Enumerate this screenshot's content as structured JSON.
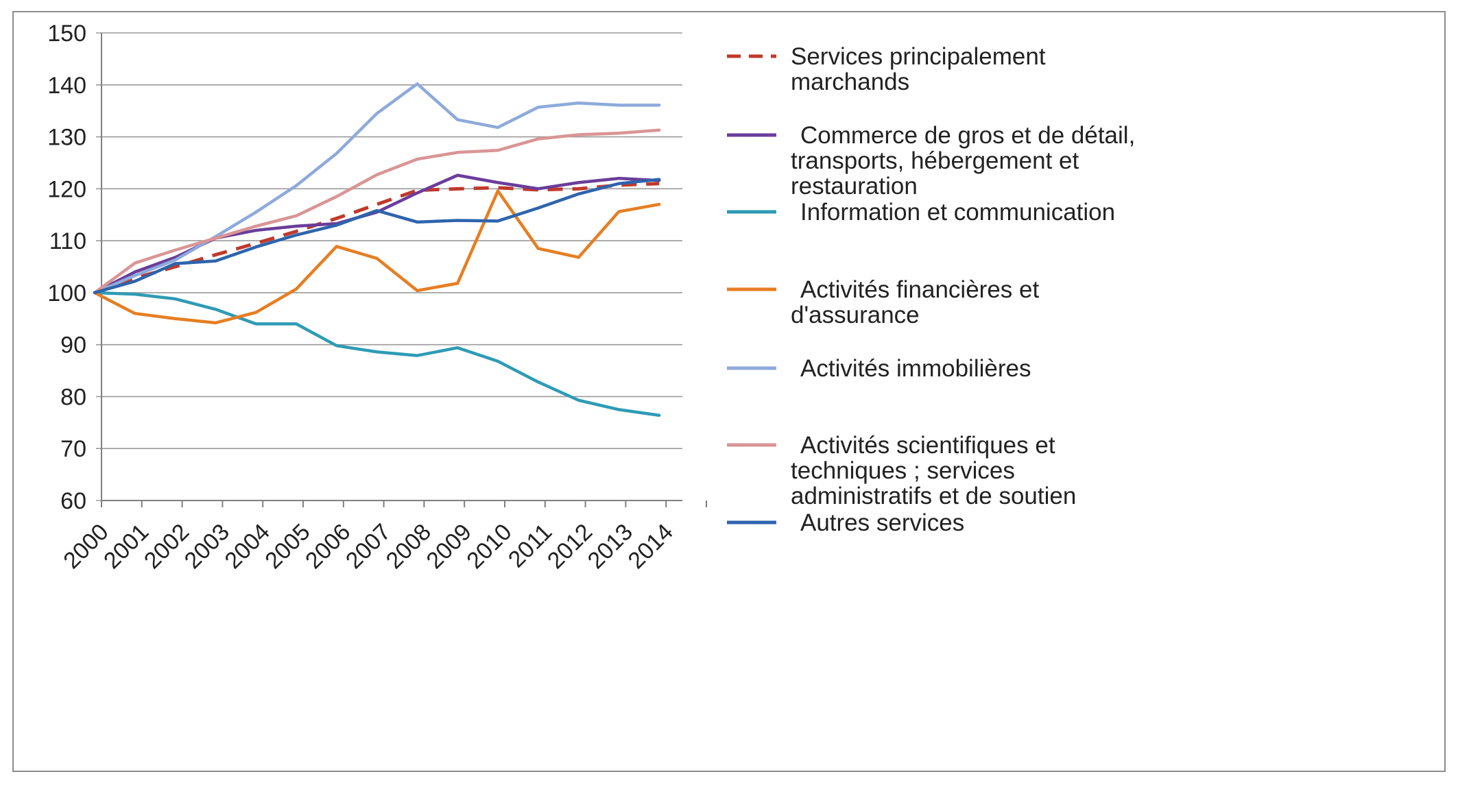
{
  "chart_data": {
    "type": "line",
    "title": "",
    "xlabel": "",
    "ylabel": "",
    "x": [
      "2000",
      "2001",
      "2002",
      "2003",
      "2004",
      "2005",
      "2006",
      "2007",
      "2008",
      "2009",
      "2010",
      "2011",
      "2012",
      "2013",
      "2014"
    ],
    "ylim": [
      60,
      150
    ],
    "yticks": [
      "150",
      "140",
      "130",
      "120",
      "110",
      "100",
      "90",
      "80",
      "70",
      "60"
    ],
    "grid": true,
    "legend_position": "right",
    "series": [
      {
        "name": "Services principalement marchands",
        "legend_lines": [
          "Services principalement",
          "marchands"
        ],
        "color": "#c0392b",
        "dashed": true,
        "values": [
          100,
          102.8,
          105,
          107.3,
          109.5,
          111.8,
          114.3,
          117,
          119.7,
          120,
          120.2,
          119.8,
          120,
          120.7,
          121
        ]
      },
      {
        "name": "Commerce de gros et de détail, transports, hébergement et restauration",
        "legend_lines": [
          "Commerce de gros et de détail,",
          "transports, hébergement et",
          "restauration"
        ],
        "color": "#6a3d9a",
        "dashed": false,
        "values": [
          100,
          104,
          106.8,
          110.5,
          112,
          112.8,
          113.3,
          115.5,
          119.2,
          122.6,
          121.2,
          120,
          121.2,
          122,
          121.6
        ]
      },
      {
        "name": "Information et communication",
        "legend_lines": [
          "Information et communication"
        ],
        "color": "#2e9bb5",
        "dashed": false,
        "values": [
          100,
          99.7,
          98.8,
          96.8,
          94,
          94,
          89.8,
          88.6,
          87.9,
          89.4,
          86.8,
          82.8,
          79.3,
          77.5,
          76.4
        ]
      },
      {
        "name": "Activités financières et d'assurance",
        "legend_lines": [
          "Activités financières et",
          "d'assurance"
        ],
        "color": "#e67e22",
        "dashed": false,
        "values": [
          100,
          96,
          95,
          94.2,
          96.2,
          100.7,
          108.9,
          106.6,
          100.4,
          101.8,
          119.6,
          108.5,
          106.8,
          115.6,
          117
        ]
      },
      {
        "name": "Activités immobilières",
        "legend_lines": [
          "Activités immobilières"
        ],
        "color": "#8eaadb",
        "dashed": false,
        "values": [
          100,
          103.3,
          106.3,
          110.8,
          115.5,
          120.6,
          126.8,
          134.5,
          140.2,
          133.3,
          131.8,
          135.7,
          136.5,
          136.1,
          136.1
        ]
      },
      {
        "name": "Activités scientifiques et techniques ; services administratifs et de soutien",
        "legend_lines": [
          "Activités scientifiques et",
          "techniques ; services",
          "administratifs et de soutien"
        ],
        "color": "#d99594",
        "dashed": false,
        "values": [
          100,
          105.7,
          108.2,
          110.5,
          112.8,
          114.8,
          118.5,
          122.7,
          125.7,
          127,
          127.4,
          129.6,
          130.4,
          130.7,
          131.3
        ]
      },
      {
        "name": "Autres services",
        "legend_lines": [
          "Autres services"
        ],
        "color": "#2e64ad",
        "dashed": false,
        "values": [
          100,
          102.2,
          105.6,
          106.1,
          108.8,
          111.1,
          113,
          115.8,
          113.6,
          113.9,
          113.8,
          116.3,
          119,
          121,
          121.8
        ]
      }
    ]
  }
}
